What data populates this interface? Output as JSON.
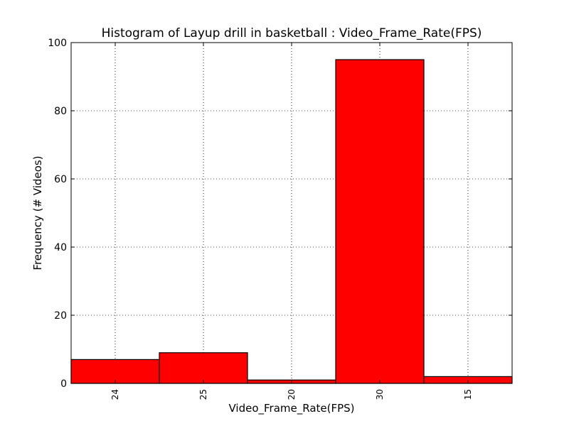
{
  "chart_data": {
    "type": "bar",
    "title": "Histogram of Layup drill in basketball : Video_Frame_Rate(FPS)",
    "xlabel": "Video_Frame_Rate(FPS)",
    "ylabel": "Frequency (# Videos)",
    "categories": [
      "24",
      "25",
      "20",
      "30",
      "15"
    ],
    "values": [
      7,
      9,
      1,
      95,
      2
    ],
    "ylim": [
      0,
      100
    ],
    "yticks": [
      0,
      20,
      40,
      60,
      80,
      100
    ],
    "grid": true,
    "bar_color": "#ff0000",
    "edge_color": "#000000"
  }
}
